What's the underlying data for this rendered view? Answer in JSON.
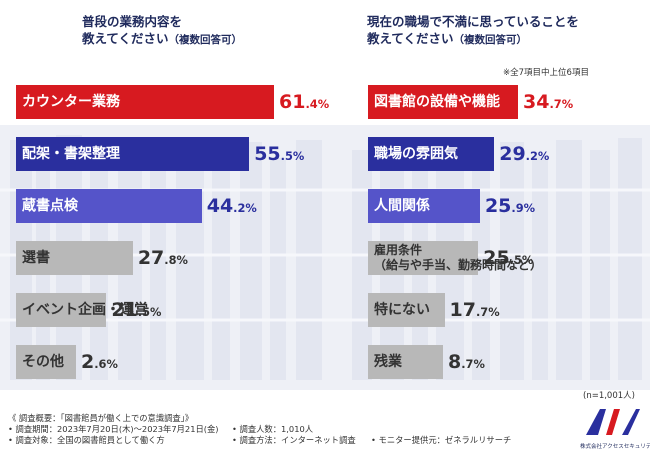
{
  "colors": {
    "red": "#d71a20",
    "navy": "#2a2f9e",
    "purple": "#5554c9",
    "gray": "#b8b8b8",
    "title": "#1f2a5c"
  },
  "chart_data": [
    {
      "type": "bar",
      "orientation": "horizontal",
      "title_lines": [
        "普段の業務内容を",
        "教えてください"
      ],
      "title_note": "（複数回答可）",
      "unit": "%",
      "categories": [
        "カウンター業務",
        "配架・書架整理",
        "蔵書点検",
        "選書",
        "イベント企画・運営",
        "その他"
      ],
      "values": [
        61.4,
        55.5,
        44.2,
        27.8,
        21.5,
        2.6
      ],
      "value_labels": [
        {
          "int": "61",
          "dec": ".4%"
        },
        {
          "int": "55",
          "dec": ".5%"
        },
        {
          "int": "44",
          "dec": ".2%"
        },
        {
          "int": "27",
          "dec": ".8%"
        },
        {
          "int": "21",
          "dec": ".5%"
        },
        {
          "int": "2",
          "dec": ".6%"
        }
      ],
      "bar_colors": [
        "red",
        "navy",
        "purple",
        "gray",
        "gray",
        "gray"
      ]
    },
    {
      "type": "bar",
      "orientation": "horizontal",
      "title_lines": [
        "現在の職場で不満に思っていることを",
        "教えてください"
      ],
      "title_note": "（複数回答可）",
      "subnote": "※全7項目中上位6項目",
      "unit": "%",
      "categories": [
        "図書館の設備や機能",
        "職場の雰囲気",
        "人間関係",
        "雇用条件\n（給与や手当、勤務時間など）",
        "特にない",
        "残業"
      ],
      "values": [
        34.7,
        29.2,
        25.9,
        25.5,
        17.7,
        8.7
      ],
      "value_labels": [
        {
          "int": "34",
          "dec": ".7%"
        },
        {
          "int": "29",
          "dec": ".2%"
        },
        {
          "int": "25",
          "dec": ".9%"
        },
        {
          "int": "25",
          "dec": ".5%"
        },
        {
          "int": "17",
          "dec": ".7%"
        },
        {
          "int": "8",
          "dec": ".7%"
        }
      ],
      "bar_colors": [
        "red",
        "navy",
        "purple",
        "gray",
        "gray",
        "gray"
      ],
      "sample_note": "(n=1,001人)"
    }
  ],
  "footer": {
    "overview": "《 調査概要：「図書館員が働く上での意識調査」》",
    "period": "• 調査期間：2023年7月20日(木)～2023年7月21日(金)",
    "people": "• 調査人数：1,010人",
    "target": "• 調査対象：全国の図書館員として働く方",
    "method": "• 調査方法：インターネット調査",
    "provider": "• モニター提供元：ゼネラルリサーチ"
  },
  "logo": {
    "mark": "A/S",
    "company": "株式会社アクセスセキュリティ"
  }
}
